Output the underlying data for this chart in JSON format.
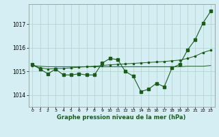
{
  "bg_color": "#d4eef4",
  "grid_color": "#b0d4c8",
  "line_color": "#1a5c1a",
  "title": "Graphe pression niveau de la mer (hPa)",
  "xlim": [
    -0.5,
    23.5
  ],
  "ylim": [
    1013.5,
    1017.85
  ],
  "yticks": [
    1014,
    1015,
    1016,
    1017
  ],
  "xticks": [
    0,
    1,
    2,
    3,
    4,
    5,
    6,
    7,
    8,
    9,
    10,
    11,
    12,
    13,
    14,
    15,
    16,
    17,
    18,
    19,
    20,
    21,
    22,
    23
  ],
  "line1": [
    1015.3,
    1015.1,
    1014.9,
    1015.1,
    1014.85,
    1014.85,
    1014.9,
    1014.85,
    1014.85,
    1015.35,
    1015.55,
    1015.5,
    1015.0,
    1014.8,
    1014.15,
    1014.25,
    1014.5,
    1014.35,
    1015.15,
    1015.3,
    1015.9,
    1016.35,
    1017.05,
    1017.55
  ],
  "line2": [
    1015.25,
    1015.15,
    1015.1,
    1015.12,
    1015.13,
    1015.15,
    1015.18,
    1015.2,
    1015.22,
    1015.25,
    1015.28,
    1015.3,
    1015.32,
    1015.34,
    1015.36,
    1015.38,
    1015.4,
    1015.42,
    1015.45,
    1015.48,
    1015.55,
    1015.65,
    1015.8,
    1015.9
  ],
  "line3": [
    1015.25,
    1015.22,
    1015.2,
    1015.2,
    1015.2,
    1015.2,
    1015.2,
    1015.2,
    1015.2,
    1015.2,
    1015.2,
    1015.2,
    1015.2,
    1015.2,
    1015.2,
    1015.2,
    1015.2,
    1015.2,
    1015.2,
    1015.2,
    1015.22,
    1015.22,
    1015.22,
    1015.25
  ]
}
